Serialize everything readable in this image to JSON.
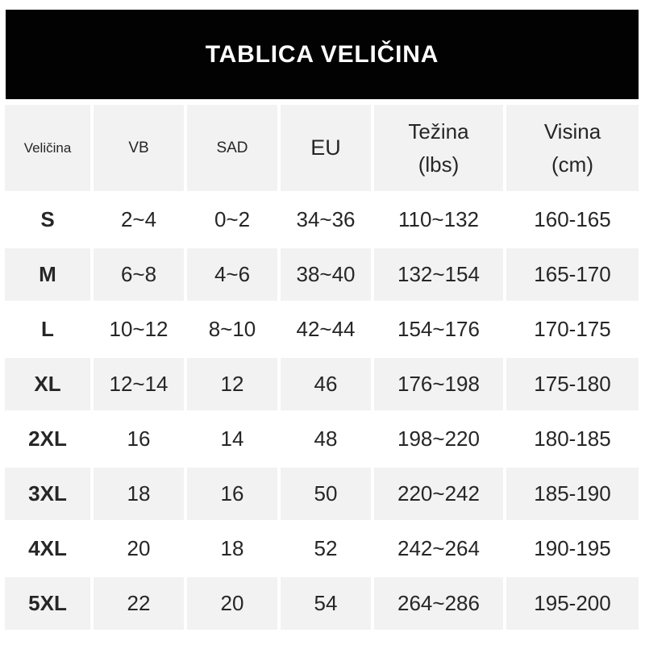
{
  "title": "TABLICA VELIČINA",
  "table": {
    "columns": [
      {
        "key": "size",
        "label": "Veličina",
        "sublabel": ""
      },
      {
        "key": "uk",
        "label": "VB",
        "sublabel": ""
      },
      {
        "key": "us",
        "label": "SAD",
        "sublabel": ""
      },
      {
        "key": "eu",
        "label": "EU",
        "sublabel": ""
      },
      {
        "key": "weight",
        "label": "Težina",
        "sublabel": "(lbs)"
      },
      {
        "key": "height",
        "label": "Visina",
        "sublabel": "(cm)"
      }
    ],
    "rows": [
      {
        "size": "S",
        "uk": "2~4",
        "us": "0~2",
        "eu": "34~36",
        "weight": "110~132",
        "height": "160-165"
      },
      {
        "size": "M",
        "uk": "6~8",
        "us": "4~6",
        "eu": "38~40",
        "weight": "132~154",
        "height": "165-170"
      },
      {
        "size": "L",
        "uk": "10~12",
        "us": "8~10",
        "eu": "42~44",
        "weight": "154~176",
        "height": "170-175"
      },
      {
        "size": "XL",
        "uk": "12~14",
        "us": "12",
        "eu": "46",
        "weight": "176~198",
        "height": "175-180"
      },
      {
        "size": "2XL",
        "uk": "16",
        "us": "14",
        "eu": "48",
        "weight": "198~220",
        "height": "180-185"
      },
      {
        "size": "3XL",
        "uk": "18",
        "us": "16",
        "eu": "50",
        "weight": "220~242",
        "height": "185-190"
      },
      {
        "size": "4XL",
        "uk": "20",
        "us": "18",
        "eu": "52",
        "weight": "242~264",
        "height": "190-195"
      },
      {
        "size": "5XL",
        "uk": "22",
        "us": "20",
        "eu": "54",
        "weight": "264~286",
        "height": "195-200"
      }
    ]
  },
  "chart_data": {
    "type": "table",
    "title": "TABLICA VELIČINA",
    "columns": [
      "Veličina",
      "VB",
      "SAD",
      "EU",
      "Težina (lbs)",
      "Visina (cm)"
    ],
    "rows": [
      [
        "S",
        "2~4",
        "0~2",
        "34~36",
        "110~132",
        "160-165"
      ],
      [
        "M",
        "6~8",
        "4~6",
        "38~40",
        "132~154",
        "165-170"
      ],
      [
        "L",
        "10~12",
        "8~10",
        "42~44",
        "154~176",
        "170-175"
      ],
      [
        "XL",
        "12~14",
        "12",
        "46",
        "176~198",
        "175-180"
      ],
      [
        "2XL",
        "16",
        "14",
        "48",
        "198~220",
        "180-185"
      ],
      [
        "3XL",
        "18",
        "16",
        "50",
        "220~242",
        "185-190"
      ],
      [
        "4XL",
        "20",
        "18",
        "52",
        "242~264",
        "190-195"
      ],
      [
        "5XL",
        "22",
        "20",
        "54",
        "264~286",
        "195-200"
      ]
    ]
  },
  "colors": {
    "banner_bg": "#020202",
    "banner_text": "#ffffff",
    "row_alt_bg": "#f2f2f2",
    "row_bg": "#ffffff",
    "text": "#262626"
  }
}
